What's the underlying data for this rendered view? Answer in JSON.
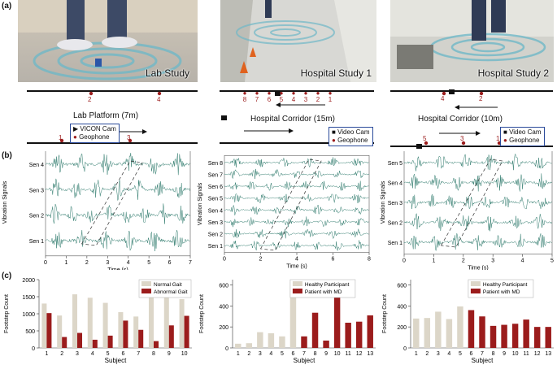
{
  "panel_labels": {
    "a": "(a)",
    "b": "(b)",
    "c": "(c)"
  },
  "studies": [
    {
      "title": "Lab Study",
      "platform_label": "Lab Platform (7m)",
      "legend": [
        "VICON Cam",
        "Geophone"
      ],
      "top_sensors": [
        "2",
        "4"
      ],
      "bottom_sensors": [
        "1",
        "3"
      ]
    },
    {
      "title": "Hospital Study 1",
      "platform_label": "Hospital Corridor (15m)",
      "legend": [
        "Video Cam",
        "Geophone"
      ],
      "top_sensors": [
        "8",
        "7",
        "6",
        "5",
        "4",
        "3",
        "2",
        "1"
      ],
      "bottom_sensors": []
    },
    {
      "title": "Hospital Study 2",
      "platform_label": "Hospital Corridor (10m)",
      "legend": [
        "Video Cam",
        "Geophone"
      ],
      "top_sensors": [
        "4",
        "2"
      ],
      "bottom_sensors": [
        "5",
        "3",
        "1"
      ]
    }
  ],
  "signals": [
    {
      "ylabel": "Vibration Signals",
      "xlabel": "Time (s)",
      "sensors": [
        "Sen 4",
        "Sen 3",
        "Sen 2",
        "Sen 1"
      ],
      "xticks": [
        "0",
        "1",
        "2",
        "3",
        "4",
        "5",
        "6",
        "7"
      ]
    },
    {
      "ylabel": "Vibration Signals",
      "xlabel": "Time (s)",
      "sensors": [
        "Sen 8",
        "Sen 7",
        "Sen 6",
        "Sen 5",
        "Sen 4",
        "Sen 3",
        "Sen 2",
        "Sen 1"
      ],
      "xticks": [
        "0",
        "2",
        "4",
        "6",
        "8"
      ]
    },
    {
      "ylabel": "Vibration Signals",
      "xlabel": "Time (s)",
      "sensors": [
        "Sen 5",
        "Sen 4",
        "Sen 3",
        "Sen 2",
        "Sen 1"
      ],
      "xticks": [
        "0",
        "1",
        "2",
        "3",
        "4",
        "5"
      ]
    }
  ],
  "colors": {
    "signal": "#2e7a6c",
    "dark_red": "#9b1c1c",
    "beige": "#dcd6c8",
    "frame": "#2a4a9a"
  },
  "chart_data": [
    {
      "type": "bar",
      "title": "",
      "xlabel": "Subject",
      "ylabel": "Footstep Count",
      "ylim": [
        0,
        2000
      ],
      "yticks": [
        0,
        500,
        1000,
        1500,
        2000
      ],
      "categories": [
        "1",
        "2",
        "3",
        "4",
        "5",
        "6",
        "7",
        "8",
        "9",
        "10"
      ],
      "series": [
        {
          "name": "Normal Gait",
          "values": [
            1300,
            950,
            1570,
            1470,
            1320,
            1050,
            920,
            1520,
            1540,
            1430
          ]
        },
        {
          "name": "Abnormal Gait",
          "values": [
            1020,
            320,
            440,
            240,
            360,
            800,
            530,
            200,
            660,
            940
          ]
        }
      ],
      "bar_colors": {
        "Normal Gait": "#dcd6c8",
        "Abnormal Gait": "#9b1c1c"
      }
    },
    {
      "type": "bar",
      "title": "",
      "xlabel": "Subject",
      "ylabel": "Footstep Count",
      "ylim": [
        0,
        650
      ],
      "yticks": [
        0,
        200,
        400,
        600
      ],
      "categories": [
        "1",
        "2",
        "3",
        "4",
        "5",
        "6",
        "7",
        "8",
        "9",
        "10",
        "11",
        "12",
        "13"
      ],
      "values": [
        40,
        45,
        150,
        140,
        110,
        630,
        110,
        335,
        70,
        480,
        240,
        250,
        310
      ],
      "groups": [
        "Healthy Participant",
        "Healthy Participant",
        "Healthy Participant",
        "Healthy Participant",
        "Healthy Participant",
        "Healthy Participant",
        "Patient with MD",
        "Patient with MD",
        "Patient with MD",
        "Patient with MD",
        "Patient with MD",
        "Patient with MD",
        "Patient with MD"
      ],
      "legend": [
        "Healthy Participant",
        "Patient with MD"
      ]
    },
    {
      "type": "bar",
      "title": "",
      "xlabel": "Subject",
      "ylabel": "Footstep Count",
      "ylim": [
        0,
        650
      ],
      "yticks": [
        0,
        200,
        400,
        600
      ],
      "categories": [
        "1",
        "2",
        "3",
        "4",
        "5",
        "6",
        "7",
        "8",
        "9",
        "10",
        "11",
        "12",
        "13"
      ],
      "values": [
        280,
        285,
        345,
        275,
        395,
        360,
        300,
        210,
        220,
        230,
        270,
        200,
        200
      ],
      "groups": [
        "Healthy Participant",
        "Healthy Participant",
        "Healthy Participant",
        "Healthy Participant",
        "Healthy Participant",
        "Patient with MD",
        "Patient with MD",
        "Patient with MD",
        "Patient with MD",
        "Patient with MD",
        "Patient with MD",
        "Patient with MD",
        "Patient with MD"
      ],
      "legend": [
        "Healthy Participant",
        "Patient with MD"
      ]
    }
  ]
}
